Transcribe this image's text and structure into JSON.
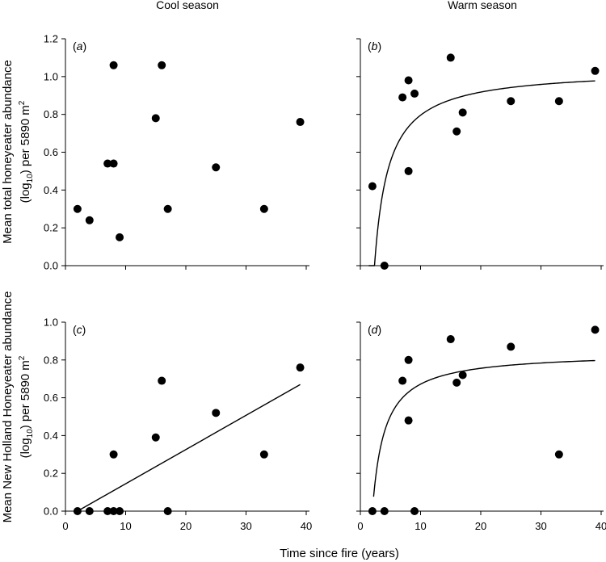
{
  "figure": {
    "x_axis_label": "Time since fire (years)",
    "y_label_top_line1": "Mean total honeyeater abundance",
    "y_label_top_line2_main": "(log",
    "y_label_top_line2_sub": "10",
    "y_label_top_line2_rest": ") per 5890 m",
    "y_label_top_line2_sup": "2",
    "y_label_bottom_line1": "Mean New Holland Honeyeater abundance",
    "y_label_bottom_line2_main": "(log",
    "y_label_bottom_line2_sub": "10",
    "y_label_bottom_line2_rest": ") per 5890 m",
    "y_label_bottom_line2_sup": "2",
    "col_titles": [
      "Cool season",
      "Warm season"
    ],
    "colors": {
      "axis": "#000000",
      "marker": "#000000",
      "fit_line": "#000000",
      "background": "#ffffff"
    }
  },
  "chart_data": [
    {
      "id": "a",
      "panel_label": "a",
      "type": "scatter",
      "column": "Cool season",
      "xlim": [
        0,
        40
      ],
      "ylim": [
        0,
        1.2
      ],
      "x_ticks": [
        "0",
        "10",
        "20",
        "30",
        "40"
      ],
      "y_ticks": [
        "0.0",
        "0.2",
        "0.4",
        "0.6",
        "0.8",
        "1.0",
        "1.2"
      ],
      "x_tick_values": [
        0,
        10,
        20,
        30,
        40
      ],
      "y_tick_values": [
        0,
        0.2,
        0.4,
        0.6,
        0.8,
        1.0,
        1.2
      ],
      "show_x_tick_labels": false,
      "show_y_tick_labels": true,
      "points": [
        {
          "x": 2,
          "y": 0.3
        },
        {
          "x": 4,
          "y": 0.24
        },
        {
          "x": 7,
          "y": 0.54
        },
        {
          "x": 8,
          "y": 0.54
        },
        {
          "x": 8,
          "y": 1.06
        },
        {
          "x": 9,
          "y": 0.15
        },
        {
          "x": 15,
          "y": 0.78
        },
        {
          "x": 16,
          "y": 1.06
        },
        {
          "x": 17,
          "y": 0.3
        },
        {
          "x": 25,
          "y": 0.52
        },
        {
          "x": 33,
          "y": 0.3
        },
        {
          "x": 39,
          "y": 0.76
        }
      ],
      "fit": null
    },
    {
      "id": "b",
      "panel_label": "b",
      "type": "scatter",
      "column": "Warm season",
      "xlim": [
        0,
        40
      ],
      "ylim": [
        0,
        1.2
      ],
      "x_ticks": [
        "0",
        "10",
        "20",
        "30",
        "40"
      ],
      "y_ticks": [
        "0.0",
        "0.2",
        "0.4",
        "0.6",
        "0.8",
        "1.0",
        "1.2"
      ],
      "x_tick_values": [
        0,
        10,
        20,
        30,
        40
      ],
      "y_tick_values": [
        0,
        0.2,
        0.4,
        0.6,
        0.8,
        1.0,
        1.2
      ],
      "show_x_tick_labels": false,
      "show_y_tick_labels": false,
      "points": [
        {
          "x": 2,
          "y": 0.42
        },
        {
          "x": 4,
          "y": 0.0
        },
        {
          "x": 7,
          "y": 0.89
        },
        {
          "x": 8,
          "y": 0.98
        },
        {
          "x": 8,
          "y": 0.5
        },
        {
          "x": 9,
          "y": 0.91
        },
        {
          "x": 15,
          "y": 1.1
        },
        {
          "x": 16,
          "y": 0.71
        },
        {
          "x": 17,
          "y": 0.81
        },
        {
          "x": 25,
          "y": 0.87
        },
        {
          "x": 33,
          "y": 0.87
        },
        {
          "x": 39,
          "y": 1.03
        }
      ],
      "fit": {
        "kind": "hyperbolic",
        "a": 1.04,
        "b": 2.35,
        "x_range": [
          1.4,
          39
        ],
        "y_min": 0
      }
    },
    {
      "id": "c",
      "panel_label": "c",
      "type": "scatter",
      "column": "Cool season",
      "xlim": [
        0,
        40
      ],
      "ylim": [
        0,
        1.0
      ],
      "x_ticks": [
        "0",
        "10",
        "20",
        "30",
        "40"
      ],
      "y_ticks": [
        "0.0",
        "0.2",
        "0.4",
        "0.6",
        "0.8",
        "1.0"
      ],
      "x_tick_values": [
        0,
        10,
        20,
        30,
        40
      ],
      "y_tick_values": [
        0,
        0.2,
        0.4,
        0.6,
        0.8,
        1.0
      ],
      "show_x_tick_labels": true,
      "show_y_tick_labels": true,
      "points": [
        {
          "x": 2,
          "y": 0.0
        },
        {
          "x": 4,
          "y": 0.0
        },
        {
          "x": 7,
          "y": 0.0
        },
        {
          "x": 8,
          "y": 0.0
        },
        {
          "x": 8,
          "y": 0.3
        },
        {
          "x": 9,
          "y": 0.0
        },
        {
          "x": 15,
          "y": 0.39
        },
        {
          "x": 16,
          "y": 0.69
        },
        {
          "x": 17,
          "y": 0.0
        },
        {
          "x": 25,
          "y": 0.52
        },
        {
          "x": 33,
          "y": 0.3
        },
        {
          "x": 39,
          "y": 0.76
        }
      ],
      "fit": {
        "kind": "linear",
        "x0": 2,
        "y0": 0.0,
        "x1": 39,
        "y1": 0.67
      }
    },
    {
      "id": "d",
      "panel_label": "d",
      "type": "scatter",
      "column": "Warm season",
      "xlim": [
        0,
        40
      ],
      "ylim": [
        0,
        1.0
      ],
      "x_ticks": [
        "0",
        "10",
        "20",
        "30",
        "40"
      ],
      "y_ticks": [
        "0.0",
        "0.2",
        "0.4",
        "0.6",
        "0.8",
        "1.0"
      ],
      "x_tick_values": [
        0,
        10,
        20,
        30,
        40
      ],
      "y_tick_values": [
        0,
        0.2,
        0.4,
        0.6,
        0.8,
        1.0
      ],
      "show_x_tick_labels": true,
      "show_y_tick_labels": false,
      "points": [
        {
          "x": 2,
          "y": 0.0
        },
        {
          "x": 4,
          "y": 0.0
        },
        {
          "x": 7,
          "y": 0.69
        },
        {
          "x": 8,
          "y": 0.8
        },
        {
          "x": 8,
          "y": 0.48
        },
        {
          "x": 9,
          "y": 0.0
        },
        {
          "x": 15,
          "y": 0.91
        },
        {
          "x": 16,
          "y": 0.68
        },
        {
          "x": 17,
          "y": 0.72
        },
        {
          "x": 25,
          "y": 0.87
        },
        {
          "x": 33,
          "y": 0.3
        },
        {
          "x": 39,
          "y": 0.96
        }
      ],
      "fit": {
        "kind": "hyperbolic",
        "a": 0.84,
        "b": 2.0,
        "x_range": [
          2.2,
          39
        ],
        "y_min": 0
      }
    }
  ]
}
